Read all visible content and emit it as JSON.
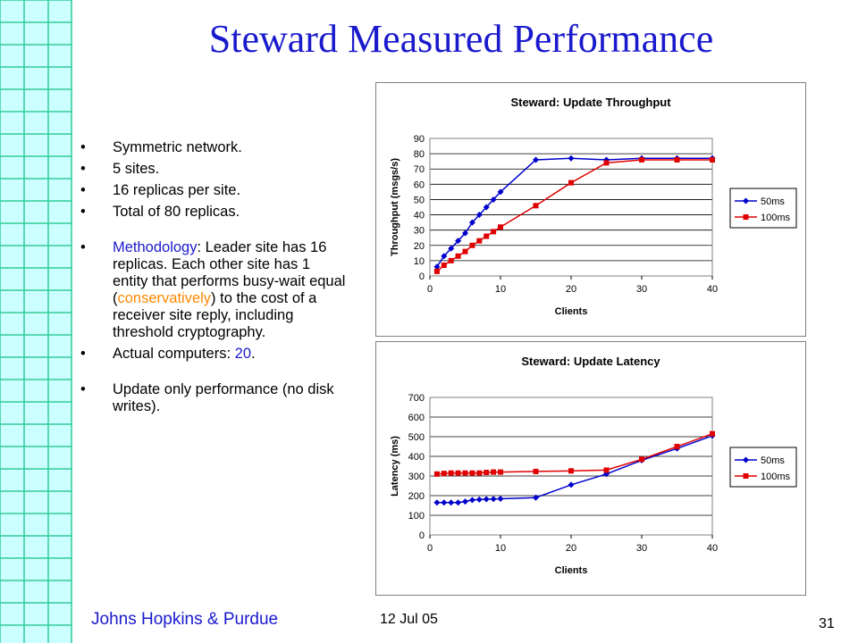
{
  "slide": {
    "title": "Steward Measured Performance",
    "bullets": {
      "b1": "Symmetric network.",
      "b2": "5 sites.",
      "b3": "16 replicas per site.",
      "b4": "Total of 80 replicas.",
      "method_label": "Methodology",
      "method_mid": ": Leader site has 16 replicas. Each other site has 1 entity that performs busy-wait equal (",
      "method_hl": "conservatively",
      "method_end": ") to the cost of a receiver site reply, including threshold cryptography.",
      "actual_label": "Actual computers: ",
      "actual_value": "20",
      "actual_end": ".",
      "b7": "Update only performance (no disk writes)."
    },
    "footer": {
      "left": "Johns Hopkins & Purdue",
      "date": "12 Jul 05",
      "page": "31"
    },
    "colors": {
      "title": "#1a1acd",
      "highlight": "#ff8800",
      "series_50ms": "#0000cc",
      "series_100ms": "#e00000"
    }
  },
  "chart_data": [
    {
      "type": "line",
      "title": "Steward: Update Throughput",
      "xlabel": "Clients",
      "ylabel": "Throughput (msgs/s)",
      "xlim": [
        0,
        40
      ],
      "ylim": [
        0,
        90
      ],
      "xticks": [
        0,
        10,
        20,
        30,
        40
      ],
      "yticks": [
        0,
        10,
        20,
        30,
        40,
        50,
        60,
        70,
        80,
        90
      ],
      "grid": true,
      "legend": "right",
      "series": [
        {
          "name": "50ms",
          "marker": "diamond",
          "color": "#0000cc",
          "x": [
            1,
            2,
            3,
            4,
            5,
            6,
            7,
            8,
            9,
            10,
            15,
            20,
            25,
            30,
            35,
            40
          ],
          "y": [
            6,
            13,
            18,
            23,
            28,
            35,
            40,
            45,
            50,
            55,
            76,
            77,
            76,
            77,
            77,
            77
          ]
        },
        {
          "name": "100ms",
          "marker": "square",
          "color": "#e00000",
          "x": [
            1,
            2,
            3,
            4,
            5,
            6,
            7,
            8,
            9,
            10,
            15,
            20,
            25,
            30,
            35,
            40
          ],
          "y": [
            3,
            7,
            10,
            13,
            16,
            20,
            23,
            26,
            29,
            32,
            46,
            61,
            74,
            76,
            76,
            76
          ]
        }
      ]
    },
    {
      "type": "line",
      "title": "Steward: Update Latency",
      "xlabel": "Clients",
      "ylabel": "Latency (ms)",
      "xlim": [
        0,
        40
      ],
      "ylim": [
        0,
        700
      ],
      "xticks": [
        0,
        10,
        20,
        30,
        40
      ],
      "yticks": [
        0,
        100,
        200,
        300,
        400,
        500,
        600,
        700
      ],
      "grid": true,
      "legend": "right",
      "series": [
        {
          "name": "50ms",
          "marker": "diamond",
          "color": "#0000cc",
          "x": [
            1,
            2,
            3,
            4,
            5,
            6,
            7,
            8,
            9,
            10,
            15,
            20,
            25,
            30,
            35,
            40
          ],
          "y": [
            165,
            165,
            165,
            165,
            170,
            178,
            180,
            182,
            183,
            184,
            190,
            255,
            310,
            380,
            440,
            505
          ]
        },
        {
          "name": "100ms",
          "marker": "square",
          "color": "#e00000",
          "x": [
            1,
            2,
            3,
            4,
            5,
            6,
            7,
            8,
            9,
            10,
            15,
            20,
            25,
            30,
            35,
            40
          ],
          "y": [
            310,
            313,
            315,
            315,
            315,
            315,
            315,
            318,
            320,
            320,
            323,
            326,
            330,
            385,
            450,
            515
          ]
        }
      ]
    }
  ]
}
